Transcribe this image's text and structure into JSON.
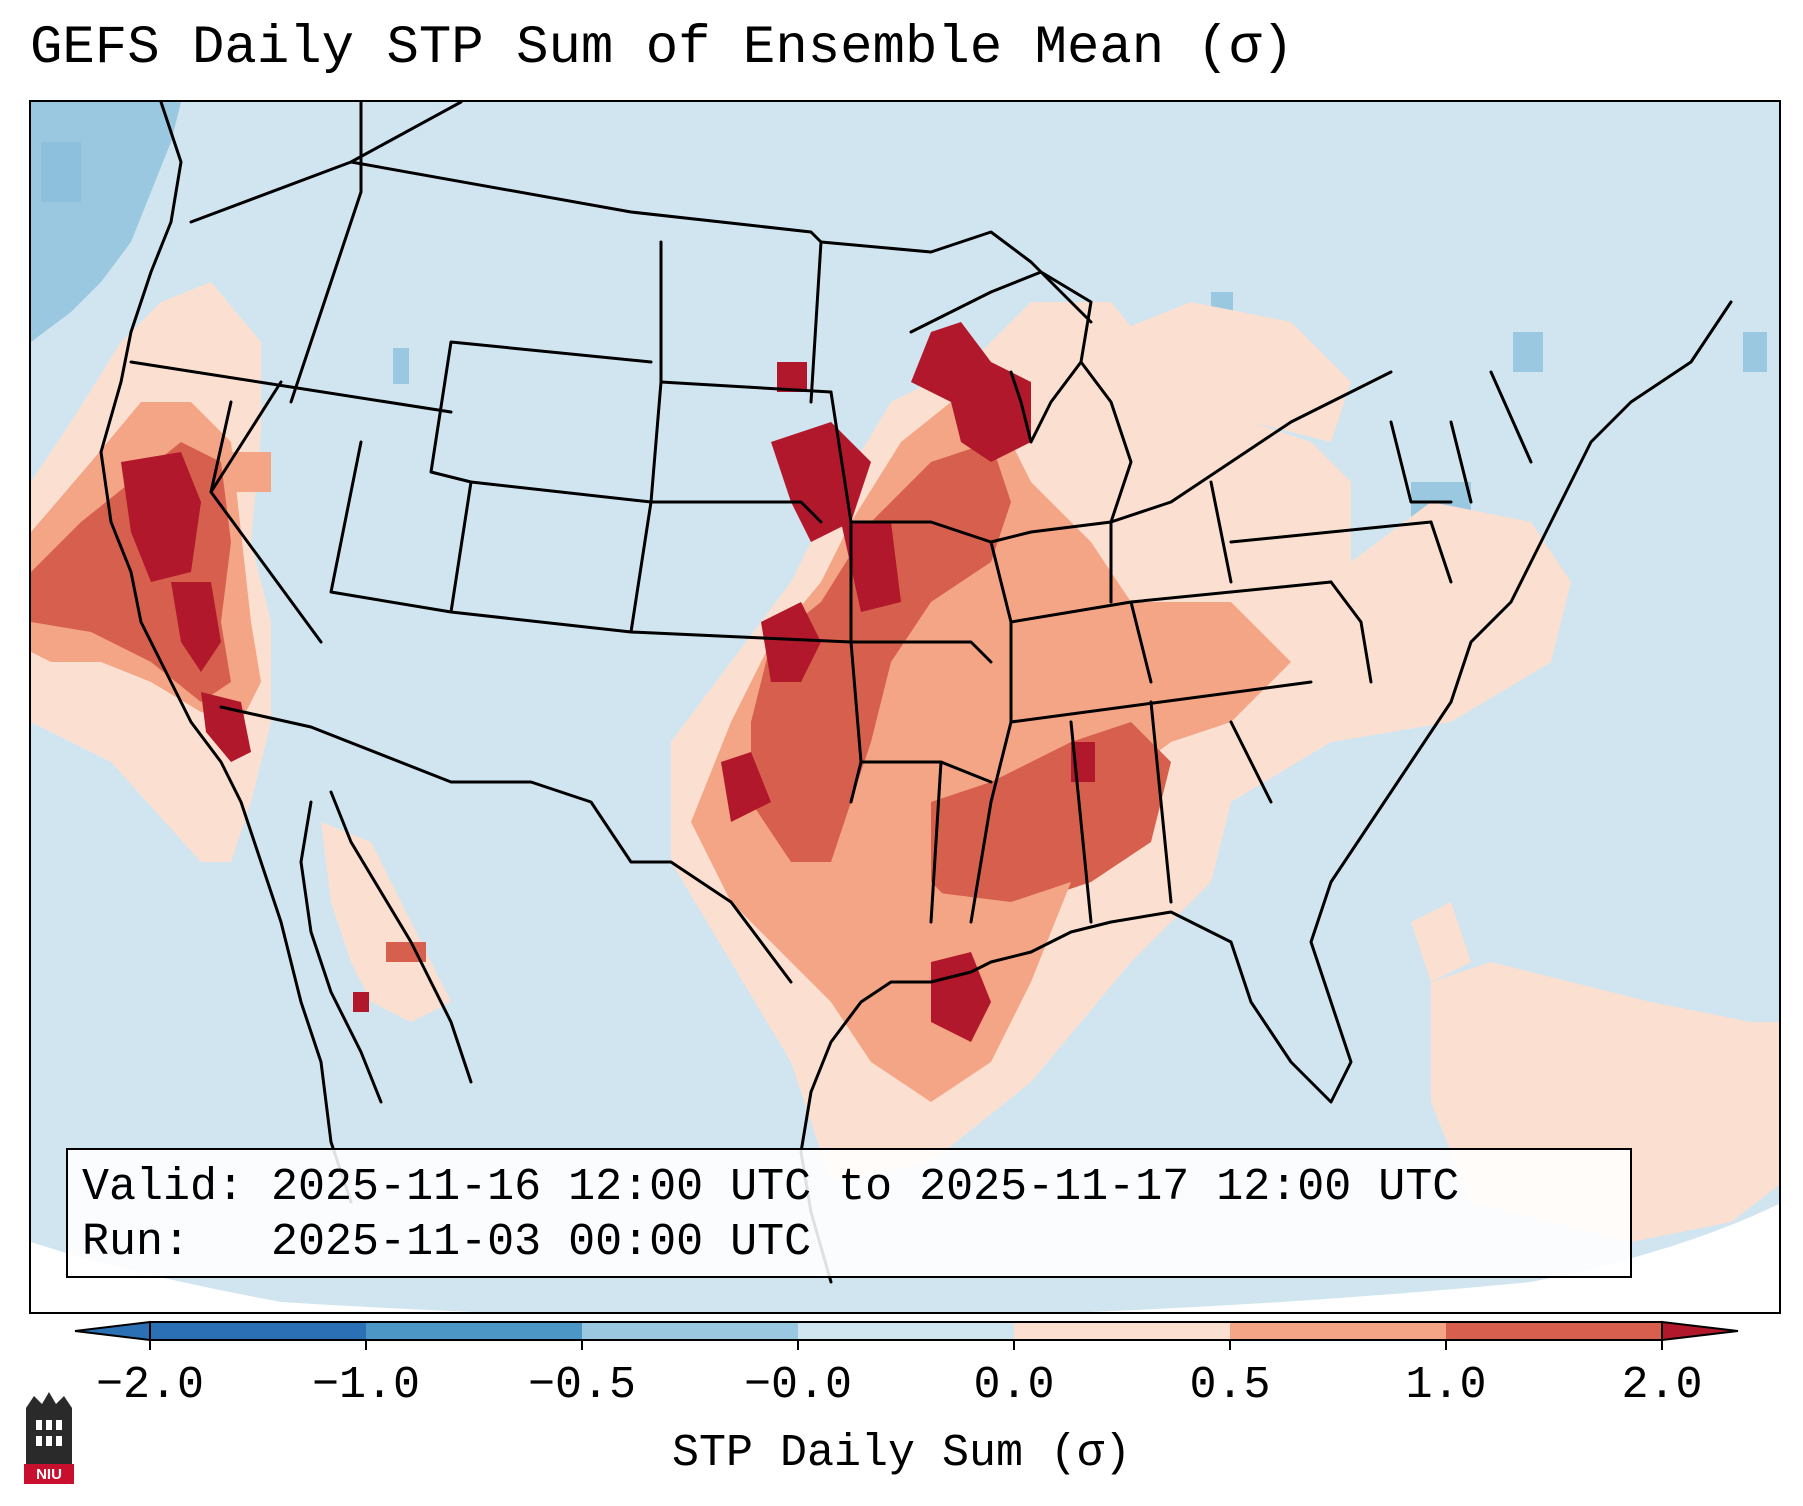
{
  "title": "GEFS Daily STP Sum of Ensemble Mean (σ)",
  "info": {
    "valid_label": "Valid:",
    "valid_range": "2025-11-16 12:00 UTC to 2025-11-17 12:00 UTC",
    "run_label": "Run:  ",
    "run_time": "2025-11-03 00:00 UTC"
  },
  "colorbar": {
    "label": "STP Daily Sum (σ)",
    "ticks": [
      "−2.0",
      "−1.0",
      "−0.5",
      "−0.0",
      "0.0",
      "0.5",
      "1.0",
      "2.0"
    ],
    "colors": [
      "#2b6fb4",
      "#4c96c6",
      "#9ac8e0",
      "#d1e5f0",
      "#fbe0d1",
      "#f3a585",
      "#d6604d",
      "#b2182b"
    ]
  },
  "logo": {
    "text": "NIU"
  },
  "map_colors": {
    "ocean_land_base": "#d1e5f0",
    "negative_light": "#9ac8e0",
    "negative_mid": "#4c96c6",
    "positive_light": "#fbe0d1",
    "positive_mid": "#f3a585",
    "positive_strong": "#d6604d",
    "positive_max": "#b2182b",
    "borders": "#000000"
  }
}
